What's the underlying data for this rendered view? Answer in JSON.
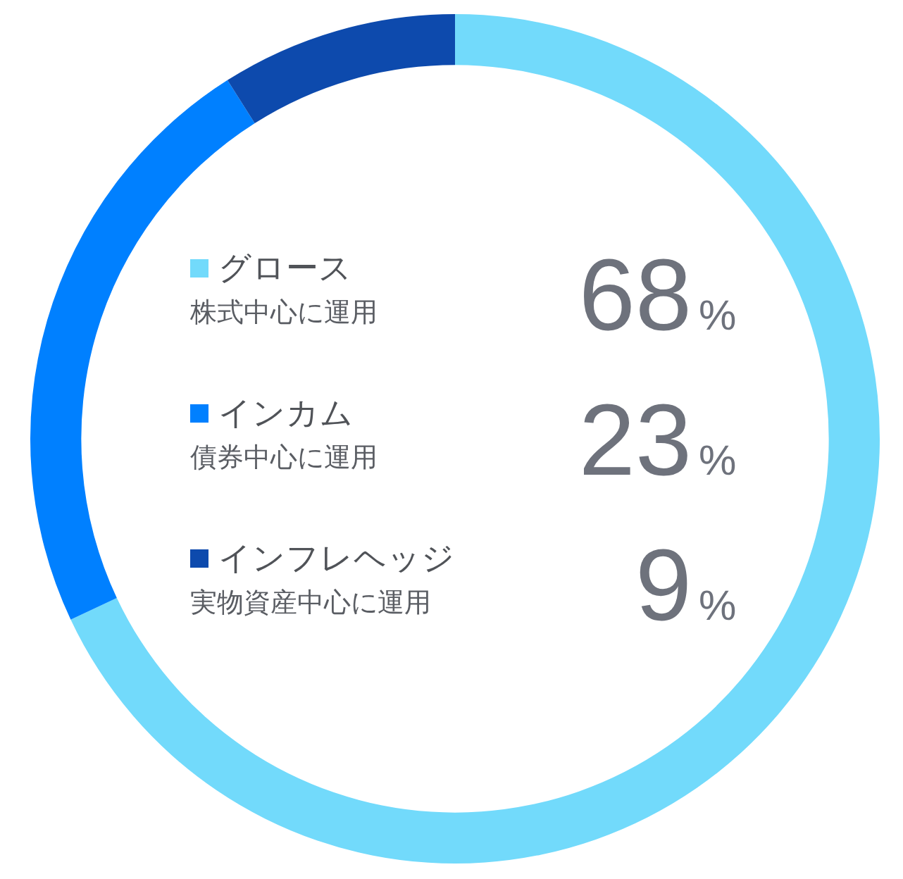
{
  "chart_data": {
    "type": "donut",
    "categories": [
      "グロース",
      "インカム",
      "インフレヘッジ"
    ],
    "values": [
      68,
      23,
      9
    ],
    "colors": [
      "#72dafb",
      "#0080ff",
      "#0d4aad"
    ],
    "value_labels": [
      "68%",
      "23%",
      "9%"
    ],
    "annotations": [
      "株式中心に運用",
      "債券中心に運用",
      "実物資産中心に運用"
    ],
    "legend": "center"
  }
}
